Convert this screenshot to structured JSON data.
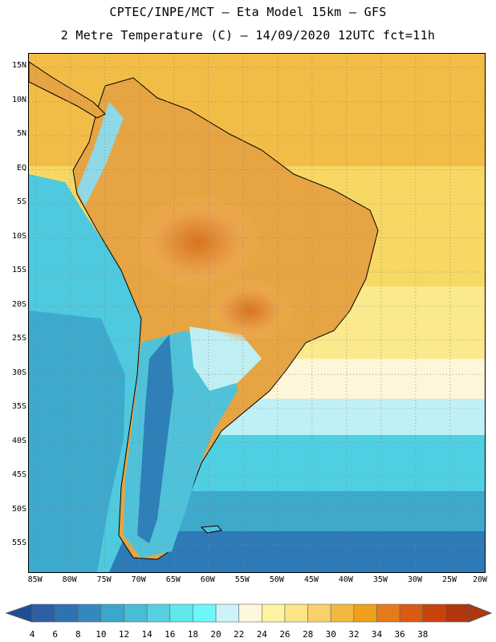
{
  "header": {
    "title_line1": "CPTEC/INPE/MCT –  Eta Model 15km – GFS",
    "title_line2": "2 Metre Temperature (C) – 14/09/2020 12UTC fct=11h"
  },
  "map": {
    "lat_ticks": [
      "15N",
      "10N",
      "5N",
      "EQ",
      "5S",
      "10S",
      "15S",
      "20S",
      "25S",
      "30S",
      "35S",
      "40S",
      "45S",
      "50S",
      "55S"
    ],
    "lat_values": [
      15,
      10,
      5,
      0,
      -5,
      -10,
      -15,
      -20,
      -25,
      -30,
      -35,
      -40,
      -45,
      -50,
      -55
    ],
    "lon_ticks": [
      "85W",
      "80W",
      "75W",
      "70W",
      "65W",
      "60W",
      "55W",
      "50W",
      "45W",
      "40W",
      "35W",
      "30W",
      "25W",
      "20W"
    ],
    "lon_values": [
      -85,
      -80,
      -75,
      -70,
      -65,
      -60,
      -55,
      -50,
      -45,
      -40,
      -35,
      -30,
      -25,
      -20
    ],
    "lon_range": [
      -86,
      -20
    ],
    "lat_range": [
      -59,
      17
    ],
    "grid": true
  },
  "colorbar": {
    "labels": [
      "4",
      "6",
      "8",
      "10",
      "12",
      "14",
      "16",
      "18",
      "20",
      "22",
      "24",
      "26",
      "28",
      "30",
      "32",
      "34",
      "36",
      "38"
    ],
    "colors": [
      "#2d5fa5",
      "#2f72b3",
      "#3388c0",
      "#3ca6cb",
      "#49bcd6",
      "#56cfe0",
      "#5ee8e8",
      "#6cf8f8",
      "#ccf4f8",
      "#fdf7dc",
      "#fdf3a2",
      "#fde585",
      "#f9d06b",
      "#f0b93d",
      "#ee9f1c",
      "#e67a1a",
      "#d95a10",
      "#c8420a",
      "#b2350e"
    ],
    "under_color": "#1e4f94",
    "over_color": "#b2350e"
  }
}
